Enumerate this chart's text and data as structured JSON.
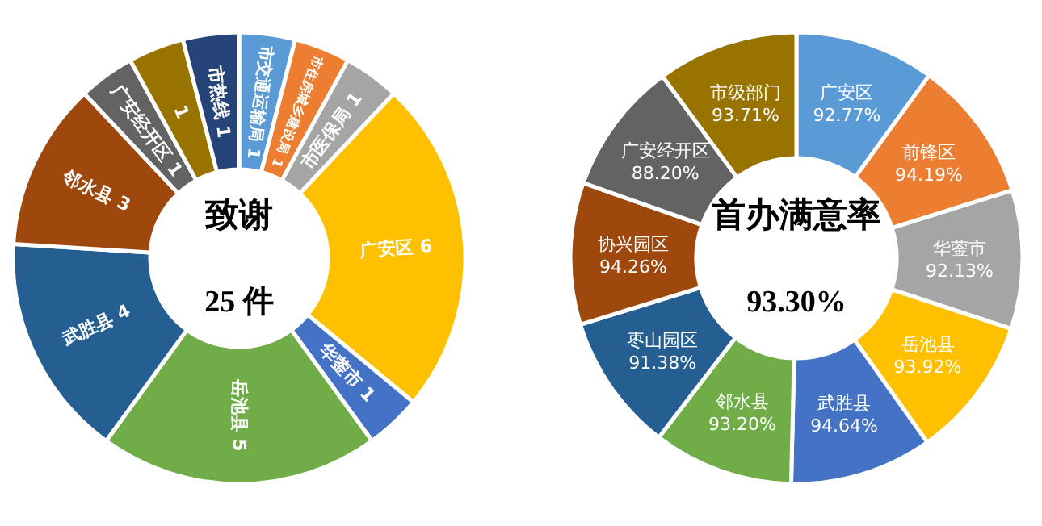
{
  "chart_data": [
    {
      "type": "donut",
      "title": "致谢",
      "annotations": [
        "25 件"
      ],
      "data_labels": true,
      "categories": [
        "市交通运输局",
        "市住房城乡建设局",
        "市医保局",
        "广安区",
        "华蓥市",
        "岳池县",
        "武胜县",
        "邻水县",
        "广安经开区",
        null,
        "市热线"
      ],
      "values": [
        1,
        1,
        1,
        6,
        1,
        5,
        4,
        3,
        1,
        1,
        1
      ],
      "colors": [
        "#5b9bd5",
        "#ed7d31",
        "#a5a5a5",
        "#ffc000",
        "#4472c4",
        "#70ad47",
        "#255e91",
        "#9e480e",
        "#636363",
        "#997300",
        "#264478"
      ]
    },
    {
      "type": "donut",
      "title": "首办满意率",
      "annotations": [
        "93.30%"
      ],
      "categories": [
        "广安区",
        "前锋区",
        "华蓥市",
        "岳池县",
        "武胜县",
        "邻水县",
        "枣山园区",
        "协兴园区",
        "广安经开区",
        "市级部门"
      ],
      "values": [
        92.77,
        94.19,
        92.13,
        93.92,
        94.64,
        93.2,
        91.38,
        94.26,
        88.2,
        93.71
      ],
      "value_labels": [
        "92.77%",
        "94.19%",
        "92.13%",
        "93.92%",
        "94.64%",
        "93.20%",
        "91.38%",
        "94.26%",
        "88.20%",
        "93.71%"
      ],
      "colors": [
        "#5b9bd5",
        "#ed7d31",
        "#a5a5a5",
        "#ffc000",
        "#4472c4",
        "#70ad47",
        "#255e91",
        "#9e480e",
        "#636363",
        "#997300"
      ]
    }
  ]
}
